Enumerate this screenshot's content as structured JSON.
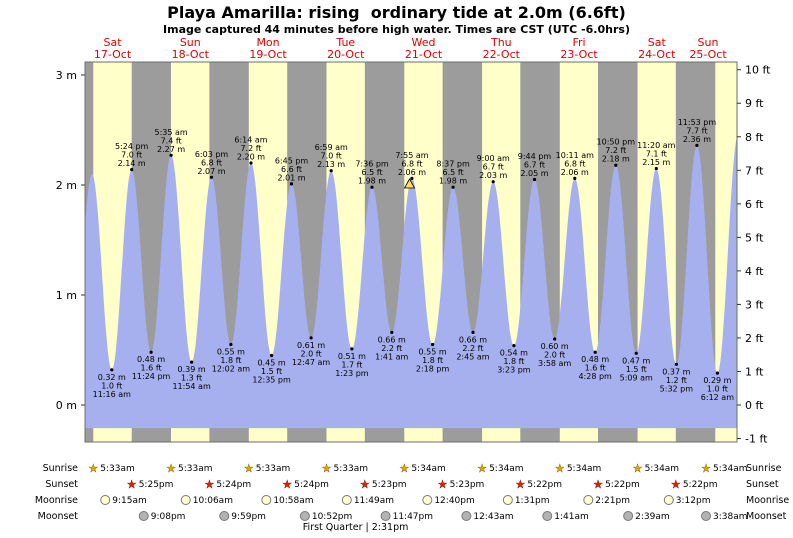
{
  "page": {
    "title": "Playa Amarilla: rising  ordinary tide at 2.0m (6.6ft)",
    "subtitle": "Image captured 44 minutes before high water. Times are CST (UTC -6.0hrs)"
  },
  "colors": {
    "day_band": "#ffffc9",
    "night_band": "#9c9c9c",
    "tide_fill": "#a7b0ef",
    "day_label": "#dd0000",
    "current_marker": "#ffe14d",
    "sunrise_star": "#dfa800",
    "sunset_star": "#e02200",
    "moonrise_disc": "#ffffd2",
    "moonset_disc": "#b3b3b3"
  },
  "chart_data": {
    "type": "area",
    "title": "Playa Amarilla: rising  ordinary tide at 2.0m (6.6ft)",
    "y_axis_left": {
      "suffix": " m",
      "ticks": [
        0,
        1,
        2,
        3
      ]
    },
    "y_axis_right": {
      "suffix": " ft",
      "ticks": [
        -1,
        0,
        1,
        2,
        3,
        4,
        5,
        6,
        7,
        8,
        9,
        10
      ]
    },
    "x_days": [
      {
        "name": "Sat",
        "date": "17-Oct"
      },
      {
        "name": "Sun",
        "date": "18-Oct"
      },
      {
        "name": "Mon",
        "date": "19-Oct"
      },
      {
        "name": "Tue",
        "date": "20-Oct"
      },
      {
        "name": "Wed",
        "date": "21-Oct"
      },
      {
        "name": "Thu",
        "date": "22-Oct"
      },
      {
        "name": "Fri",
        "date": "23-Oct"
      },
      {
        "name": "Sat",
        "date": "24-Oct"
      },
      {
        "name": "Sun",
        "date": "25-Oct"
      }
    ],
    "tide_extremes": [
      {
        "kind": "low",
        "day": 0,
        "time": "11:16 am",
        "m": 0.32,
        "ft": 1.0
      },
      {
        "kind": "high",
        "day": 0,
        "time": "5:24 pm",
        "m": 2.14,
        "ft": 7.0
      },
      {
        "kind": "low",
        "day": 0,
        "time": "11:24 pm",
        "m": 0.48,
        "ft": 1.6
      },
      {
        "kind": "high",
        "day": 1,
        "time": "5:35 am",
        "m": 2.27,
        "ft": 7.4
      },
      {
        "kind": "low",
        "day": 1,
        "time": "11:54 am",
        "m": 0.39,
        "ft": 1.3
      },
      {
        "kind": "high",
        "day": 1,
        "time": "6:03 pm",
        "m": 2.07,
        "ft": 6.8
      },
      {
        "kind": "low",
        "day": 2,
        "time": "12:02 am",
        "m": 0.55,
        "ft": 1.8
      },
      {
        "kind": "high",
        "day": 2,
        "time": "6:14 am",
        "m": 2.2,
        "ft": 7.2
      },
      {
        "kind": "low",
        "day": 2,
        "time": "12:35 pm",
        "m": 0.45,
        "ft": 1.5
      },
      {
        "kind": "high",
        "day": 2,
        "time": "6:45 pm",
        "m": 2.01,
        "ft": 6.6
      },
      {
        "kind": "low",
        "day": 3,
        "time": "12:47 am",
        "m": 0.61,
        "ft": 2.0
      },
      {
        "kind": "high",
        "day": 3,
        "time": "6:59 am",
        "m": 2.13,
        "ft": 7.0
      },
      {
        "kind": "low",
        "day": 3,
        "time": "1:23 pm",
        "m": 0.51,
        "ft": 1.7
      },
      {
        "kind": "high",
        "day": 3,
        "time": "7:36 pm",
        "m": 1.98,
        "ft": 6.5
      },
      {
        "kind": "low",
        "day": 4,
        "time": "1:41 am",
        "m": 0.66,
        "ft": 2.2
      },
      {
        "kind": "high",
        "day": 4,
        "time": "7:55 am",
        "m": 2.06,
        "ft": 6.8,
        "current": true
      },
      {
        "kind": "low",
        "day": 4,
        "time": "2:18 pm",
        "m": 0.55,
        "ft": 1.8
      },
      {
        "kind": "high",
        "day": 4,
        "time": "8:37 pm",
        "m": 1.98,
        "ft": 6.5
      },
      {
        "kind": "low",
        "day": 5,
        "time": "2:45 am",
        "m": 0.66,
        "ft": 2.2
      },
      {
        "kind": "high",
        "day": 5,
        "time": "9:00 am",
        "m": 2.03,
        "ft": 6.7
      },
      {
        "kind": "low",
        "day": 5,
        "time": "3:23 pm",
        "m": 0.54,
        "ft": 1.8
      },
      {
        "kind": "high",
        "day": 5,
        "time": "9:44 pm",
        "m": 2.05,
        "ft": 6.7
      },
      {
        "kind": "low",
        "day": 6,
        "time": "3:58 am",
        "m": 0.6,
        "ft": 2.0
      },
      {
        "kind": "high",
        "day": 6,
        "time": "10:11 am",
        "m": 2.06,
        "ft": 6.8
      },
      {
        "kind": "low",
        "day": 6,
        "time": "4:28 pm",
        "m": 0.48,
        "ft": 1.6
      },
      {
        "kind": "high",
        "day": 6,
        "time": "10:50 pm",
        "m": 2.18,
        "ft": 7.2
      },
      {
        "kind": "low",
        "day": 7,
        "time": "5:09 am",
        "m": 0.47,
        "ft": 1.5
      },
      {
        "kind": "high",
        "day": 7,
        "time": "11:20 am",
        "m": 2.15,
        "ft": 7.1
      },
      {
        "kind": "low",
        "day": 7,
        "time": "5:32 pm",
        "m": 0.37,
        "ft": 1.2
      },
      {
        "kind": "high",
        "day": 7,
        "time": "11:53 pm",
        "m": 2.36,
        "ft": 7.7
      },
      {
        "kind": "low",
        "day": 8,
        "time": "6:12 am",
        "m": 0.29,
        "ft": 1.0
      }
    ],
    "current_marker": {
      "t": 103.18,
      "m": 2.0
    },
    "sun_moon": {
      "sunrise": {
        "label": "Sunrise",
        "items": [
          {
            "day": 0,
            "time": "5:33am"
          },
          {
            "day": 1,
            "time": "5:33am"
          },
          {
            "day": 2,
            "time": "5:33am"
          },
          {
            "day": 3,
            "time": "5:33am"
          },
          {
            "day": 4,
            "time": "5:34am"
          },
          {
            "day": 5,
            "time": "5:34am"
          },
          {
            "day": 6,
            "time": "5:34am"
          },
          {
            "day": 7,
            "time": "5:34am"
          },
          {
            "day": 8,
            "time": "5:34am"
          }
        ]
      },
      "sunset": {
        "label": "Sunset",
        "items": [
          {
            "day": 0,
            "time": "5:25pm"
          },
          {
            "day": 1,
            "time": "5:24pm"
          },
          {
            "day": 2,
            "time": "5:24pm"
          },
          {
            "day": 3,
            "time": "5:23pm"
          },
          {
            "day": 4,
            "time": "5:23pm"
          },
          {
            "day": 5,
            "time": "5:22pm"
          },
          {
            "day": 6,
            "time": "5:22pm"
          },
          {
            "day": 7,
            "time": "5:22pm"
          }
        ]
      },
      "moonrise": {
        "label": "Moonrise",
        "items": [
          {
            "day": 0,
            "time": "9:15am"
          },
          {
            "day": 1,
            "time": "10:06am"
          },
          {
            "day": 2,
            "time": "10:58am"
          },
          {
            "day": 3,
            "time": "11:49am"
          },
          {
            "day": 4,
            "time": "12:40pm"
          },
          {
            "day": 5,
            "time": "1:31pm"
          },
          {
            "day": 6,
            "time": "2:21pm"
          },
          {
            "day": 7,
            "time": "3:12pm"
          }
        ]
      },
      "moonset": {
        "label": "Moonset",
        "items": [
          {
            "day": 0,
            "time": "9:08pm"
          },
          {
            "day": 1,
            "time": "9:59pm"
          },
          {
            "day": 2,
            "time": "10:52pm"
          },
          {
            "day": 3,
            "time": "11:47pm"
          },
          {
            "day": 5,
            "time": "12:43am"
          },
          {
            "day": 6,
            "time": "1:41am"
          },
          {
            "day": 7,
            "time": "2:39am"
          },
          {
            "day": 8,
            "time": "3:38am"
          }
        ]
      }
    },
    "moon_phase": {
      "text": "First Quarter | 2:31pm",
      "day": 3,
      "time": "2:31pm"
    },
    "layout_hints": {
      "t_start": 3.0,
      "t_end": 204.25,
      "baseline_m": -0.21,
      "m_range": [
        -0.34,
        3.12
      ],
      "offscreen_anchors": [
        {
          "t": -0.83,
          "m": 0.45
        },
        {
          "t": 5.17,
          "m": 2.1
        },
        {
          "t": 204.58,
          "m": 2.45
        }
      ]
    }
  }
}
